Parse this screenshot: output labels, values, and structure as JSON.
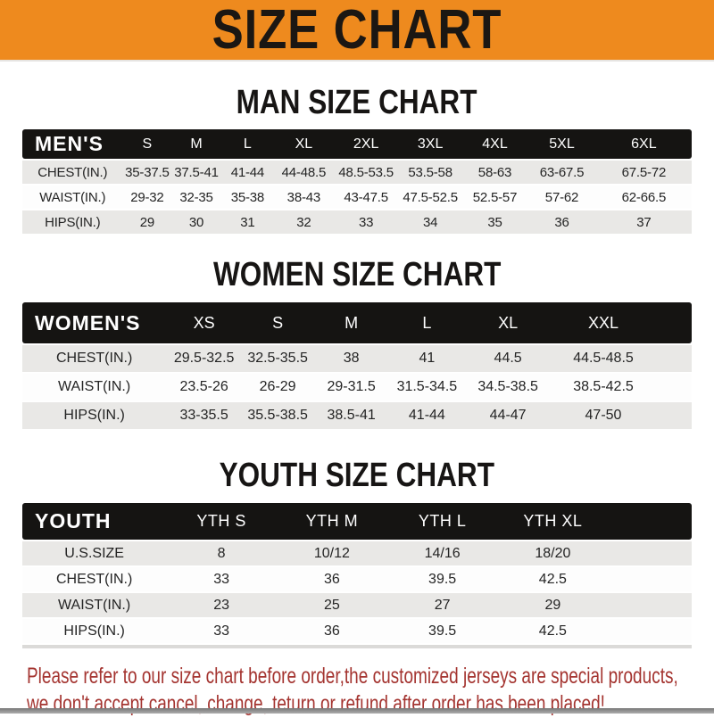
{
  "banner": {
    "title": "SIZE CHART"
  },
  "colors": {
    "banner_bg": "#ee8a1e",
    "banner_text": "#1b1713",
    "header_bar_bg": "#151412",
    "header_bar_text": "#ffffff",
    "stripe_gray": "#e9e8e6",
    "row_white": "#fdfdfd",
    "footer_text": "#a43430"
  },
  "sections": [
    {
      "id": "man",
      "heading": "MAN SIZE CHART",
      "header": [
        "MEN'S",
        "S",
        "M",
        "L",
        "XL",
        "2XL",
        "3XL",
        "4XL",
        "5XL",
        "6XL"
      ],
      "rows": [
        [
          "CHEST(IN.)",
          "35-37.5",
          "37.5-41",
          "41-44",
          "44-48.5",
          "48.5-53.5",
          "53.5-58",
          "58-63",
          "63-67.5",
          "67.5-72"
        ],
        [
          "WAIST(IN.)",
          "29-32",
          "32-35",
          "35-38",
          "38-43",
          "43-47.5",
          "47.5-52.5",
          "52.5-57",
          "57-62",
          "62-66.5"
        ],
        [
          "HIPS(IN.)",
          "29",
          "30",
          "31",
          "32",
          "33",
          "34",
          "35",
          "36",
          "37"
        ]
      ]
    },
    {
      "id": "women",
      "heading": "WOMEN SIZE CHART",
      "header": [
        "WOMEN'S",
        "XS",
        "S",
        "M",
        "L",
        "XL",
        "XXL"
      ],
      "rows": [
        [
          "CHEST(IN.)",
          "29.5-32.5",
          "32.5-35.5",
          "38",
          "41",
          "44.5",
          "44.5-48.5"
        ],
        [
          "WAIST(IN.)",
          "23.5-26",
          "26-29",
          "29-31.5",
          "31.5-34.5",
          "34.5-38.5",
          "38.5-42.5"
        ],
        [
          "HIPS(IN.)",
          "33-35.5",
          "35.5-38.5",
          "38.5-41",
          "41-44",
          "44-47",
          "47-50"
        ]
      ]
    },
    {
      "id": "youth",
      "heading": "YOUTH SIZE CHART",
      "header": [
        "YOUTH",
        "YTH S",
        "YTH M",
        "YTH L",
        "YTH XL"
      ],
      "rows": [
        [
          "U.S.SIZE",
          "8",
          "10/12",
          "14/16",
          "18/20"
        ],
        [
          "CHEST(IN.)",
          "33",
          "36",
          "39.5",
          "42.5"
        ],
        [
          "WAIST(IN.)",
          "23",
          "25",
          "27",
          "29"
        ],
        [
          "HIPS(IN.)",
          "33",
          "36",
          "39.5",
          "42.5"
        ]
      ]
    }
  ],
  "footer": {
    "line1": "Please refer to our size chart before order,the customized jerseys are special products,",
    "line2": "we don't accept cancel, change, teturn or refund after order has been placed!"
  }
}
